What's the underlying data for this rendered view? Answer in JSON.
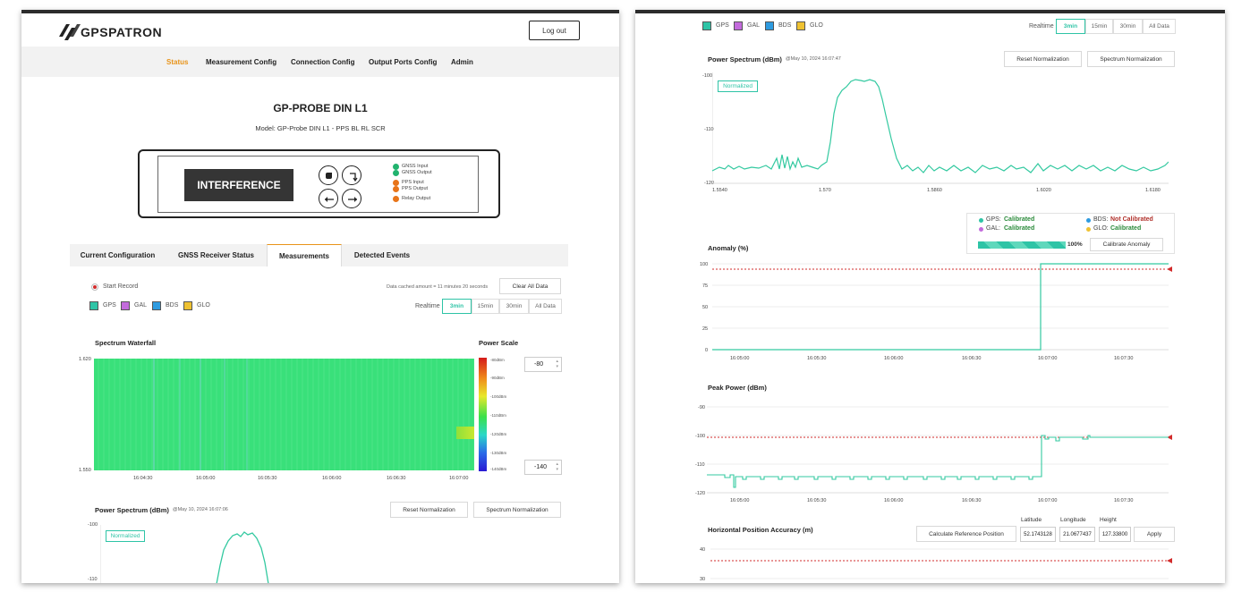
{
  "header": {
    "brand": "GPSPATRON",
    "logout_label": "Log out"
  },
  "nav": {
    "items": [
      "Status",
      "Measurement Config",
      "Connection Config",
      "Output Ports Config",
      "Admin"
    ],
    "active": "Status"
  },
  "device": {
    "title": "GP-PROBE DIN L1",
    "model": "Model: GP-Probe DIN L1 - PPS BL RL SCR",
    "display": "INTERFERENCE",
    "leds": [
      {
        "label": "GNSS Input",
        "color": "#22b36e"
      },
      {
        "label": "GNSS Output",
        "color": "#22b36e"
      },
      {
        "label": "PPS Input",
        "color": "#e8751a"
      },
      {
        "label": "PPS Output",
        "color": "#e8751a"
      },
      {
        "label": "Relay Output",
        "color": "#e8751a"
      }
    ]
  },
  "tabs": {
    "items": [
      "Current Configuration",
      "GNSS Receiver Status",
      "Measurements",
      "Detected Events"
    ],
    "active": "Measurements"
  },
  "measure": {
    "start_record": "Start Record",
    "cache_text": "Data cached amount = 11 minutes 20 seconds",
    "clear_label": "Clear All Data",
    "realtime_label": "Realtime",
    "ranges": [
      "3min",
      "15min",
      "30min",
      "All Data"
    ],
    "active_range": "3min"
  },
  "constellations": [
    {
      "name": "GPS",
      "color": "#2ec4a6"
    },
    {
      "name": "GAL",
      "color": "#c36bdc"
    },
    {
      "name": "BDS",
      "color": "#2e9be0"
    },
    {
      "name": "GLO",
      "color": "#efc232"
    }
  ],
  "waterfall": {
    "title": "Spectrum Waterfall",
    "y_top": "1.620",
    "y_bottom": "1.550",
    "x_ticks": [
      "16:04:30",
      "16:05:00",
      "16:05:30",
      "16:06:00",
      "16:06:30",
      "16:07:00"
    ]
  },
  "power_scale": {
    "title": "Power Scale",
    "max_value": "-80",
    "min_value": "-140",
    "labels": [
      "-80dBm",
      "-90dBm",
      "-100dBm",
      "-110dBm",
      "-120dBm",
      "-130dBm",
      "-140dBm"
    ]
  },
  "power_spectrum_left": {
    "title": "Power Spectrum (dBm)",
    "timestamp": "@May 10, 2024 16:07:06",
    "reset_label": "Reset Normalization",
    "spectrum_label": "Spectrum Normalization",
    "normalized": "Normalized",
    "y_ticks": [
      "-100",
      "-110"
    ]
  },
  "power_spectrum_right": {
    "title": "Power Spectrum (dBm)",
    "timestamp": "@May 10, 2024 16:07:47",
    "reset_label": "Reset Normalization",
    "spectrum_label": "Spectrum Normalization",
    "normalized": "Normalized",
    "y_ticks": [
      "-100",
      "-110",
      "-120"
    ],
    "x_ticks": [
      "1.5540",
      "1.570",
      "1.5860",
      "1.6020",
      "1.6180"
    ]
  },
  "calibration": {
    "items": [
      {
        "name": "GPS:",
        "status": "Calibrated",
        "dot": "#2ec4a6",
        "status_color": "#2a8a3a"
      },
      {
        "name": "BDS:",
        "status": "Not Calibrated",
        "dot": "#2e9be0",
        "status_color": "#b0302a"
      },
      {
        "name": "GAL:",
        "status": "Calibrated",
        "dot": "#c36bdc",
        "status_color": "#2a8a3a"
      },
      {
        "name": "GLO:",
        "status": "Calibrated",
        "dot": "#efc232",
        "status_color": "#2a8a3a"
      }
    ],
    "progress": 1.0,
    "progress_text": "100%",
    "calibrate_label": "Calibrate Anomaly"
  },
  "anomaly": {
    "title": "Anomaly (%)",
    "y_ticks": [
      "100",
      "75",
      "50",
      "25",
      "0"
    ],
    "x_ticks": [
      "16:05:00",
      "16:05:30",
      "16:06:00",
      "16:06:30",
      "16:07:00",
      "16:07:30"
    ]
  },
  "peak_power": {
    "title": "Peak Power (dBm)",
    "y_ticks": [
      "-90",
      "-100",
      "-110",
      "-120"
    ],
    "x_ticks": [
      "16:05:00",
      "16:05:30",
      "16:06:00",
      "16:06:30",
      "16:07:00",
      "16:07:30"
    ]
  },
  "hpa": {
    "title": "Horizontal Position Accuracy (m)",
    "calc_label": "Calculate Reference Position",
    "lat_label": "Latitude",
    "lat_value": "52.1743128",
    "lon_label": "Longitude",
    "lon_value": "21.0677437",
    "height_label": "Height",
    "height_value": "127.33800",
    "apply_label": "Apply",
    "y_ticks": [
      "40",
      "30"
    ]
  },
  "colors": {
    "accent": "#e8941a",
    "line": "#33c9a0",
    "threshold": "#d22b2b"
  }
}
